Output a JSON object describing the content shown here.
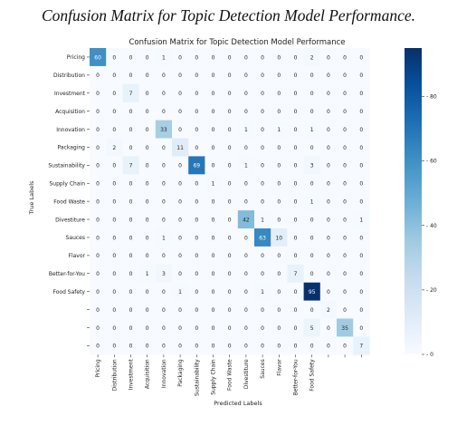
{
  "caption": "Confusion Matrix for Topic Detection Model Performance.",
  "chart_data": {
    "type": "heatmap",
    "title": "Confusion Matrix for Topic Detection Model Performance",
    "xlabel": "Predicted Labels",
    "ylabel": "True Labels",
    "x_labels": [
      "Pricing",
      "Distribution",
      "Investment",
      "Acquisition",
      "Innovation",
      "Packaging",
      "Sustainability",
      "Supply Chain",
      "Food Waste",
      "Divestiture",
      "Sauces",
      "Flavor",
      "Better-for-You",
      "Food Safety",
      "",
      "",
      ""
    ],
    "y_labels": [
      "Pricing",
      "Distribution",
      "Investment",
      "Acquisition",
      "Innovation",
      "Packaging",
      "Sustainability",
      "Supply Chain",
      "Food Waste",
      "Divestiture",
      "Sauces",
      "Flavor",
      "Better-for-You",
      "Food Safety",
      "",
      "",
      ""
    ],
    "values": [
      [
        60,
        0,
        0,
        0,
        1,
        0,
        0,
        0,
        0,
        0,
        0,
        0,
        0,
        2,
        0,
        0,
        0
      ],
      [
        0,
        0,
        0,
        0,
        0,
        0,
        0,
        0,
        0,
        0,
        0,
        0,
        0,
        0,
        0,
        0,
        0
      ],
      [
        0,
        0,
        7,
        0,
        0,
        0,
        0,
        0,
        0,
        0,
        0,
        0,
        0,
        0,
        0,
        0,
        0
      ],
      [
        0,
        0,
        0,
        0,
        0,
        0,
        0,
        0,
        0,
        0,
        0,
        0,
        0,
        0,
        0,
        0,
        0
      ],
      [
        0,
        0,
        0,
        0,
        33,
        0,
        0,
        0,
        0,
        1,
        0,
        1,
        0,
        1,
        0,
        0,
        0
      ],
      [
        0,
        2,
        0,
        0,
        0,
        11,
        0,
        0,
        0,
        0,
        0,
        0,
        0,
        0,
        0,
        0,
        0
      ],
      [
        0,
        0,
        7,
        0,
        0,
        0,
        69,
        0,
        0,
        1,
        0,
        0,
        0,
        3,
        0,
        0,
        0
      ],
      [
        0,
        0,
        0,
        0,
        0,
        0,
        0,
        1,
        0,
        0,
        0,
        0,
        0,
        0,
        0,
        0,
        0
      ],
      [
        0,
        0,
        0,
        0,
        0,
        0,
        0,
        0,
        0,
        0,
        0,
        0,
        0,
        1,
        0,
        0,
        0
      ],
      [
        0,
        0,
        0,
        0,
        0,
        0,
        0,
        0,
        0,
        42,
        1,
        0,
        0,
        0,
        0,
        0,
        1
      ],
      [
        0,
        0,
        0,
        0,
        1,
        0,
        0,
        0,
        0,
        0,
        63,
        10,
        0,
        0,
        0,
        0,
        0
      ],
      [
        0,
        0,
        0,
        0,
        0,
        0,
        0,
        0,
        0,
        0,
        0,
        0,
        0,
        0,
        0,
        0,
        0
      ],
      [
        0,
        0,
        0,
        1,
        3,
        0,
        0,
        0,
        0,
        0,
        0,
        0,
        7,
        0,
        0,
        0,
        0
      ],
      [
        0,
        0,
        0,
        0,
        0,
        1,
        0,
        0,
        0,
        0,
        1,
        0,
        0,
        95,
        0,
        0,
        0
      ],
      [
        0,
        0,
        0,
        0,
        0,
        0,
        0,
        0,
        0,
        0,
        0,
        0,
        0,
        0,
        2,
        0,
        0
      ],
      [
        0,
        0,
        0,
        0,
        0,
        0,
        0,
        0,
        0,
        0,
        0,
        0,
        0,
        5,
        0,
        35,
        0
      ],
      [
        0,
        0,
        0,
        0,
        0,
        0,
        0,
        0,
        0,
        0,
        0,
        0,
        0,
        0,
        0,
        0,
        7
      ]
    ],
    "colorbar": {
      "min": 0,
      "max": 95,
      "ticks": [
        0,
        20,
        40,
        60,
        80
      ]
    },
    "colormap": [
      "#f7fbff",
      "#deebf7",
      "#c6dbef",
      "#9ecae1",
      "#6baed6",
      "#4292c6",
      "#2171b5",
      "#08519c",
      "#08306b"
    ],
    "grid": false
  }
}
